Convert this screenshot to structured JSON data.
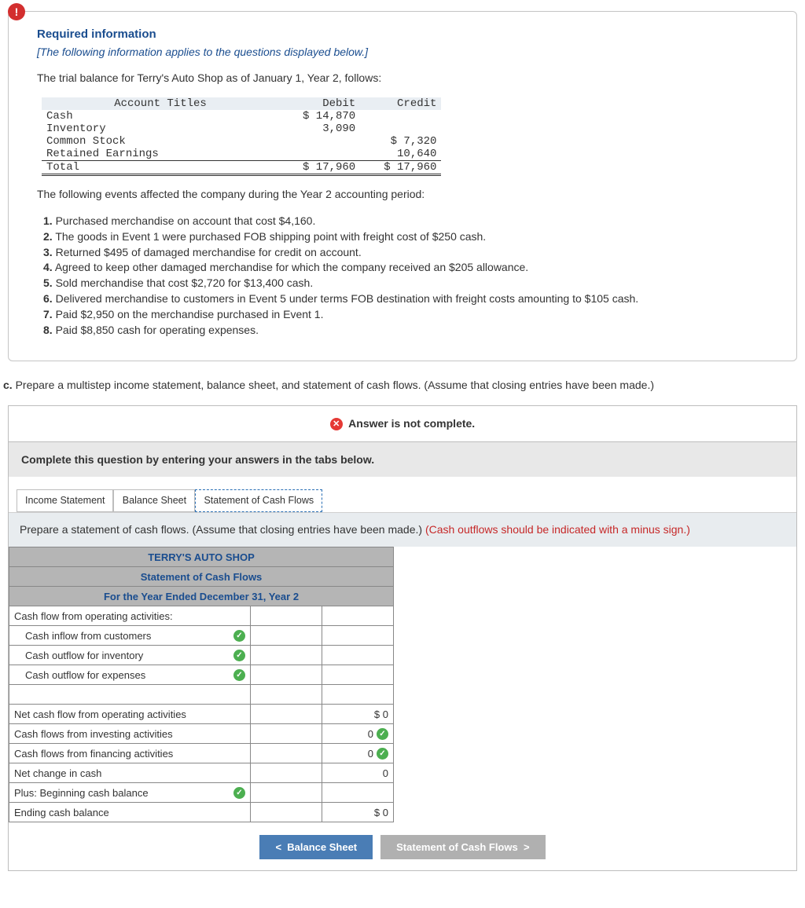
{
  "header": {
    "required_label": "Required information",
    "applies_note": "[The following information applies to the questions displayed below.]",
    "intro": "The trial balance for Terry's Auto Shop as of January 1, Year 2, follows:"
  },
  "trial_balance": {
    "headers": [
      "Account Titles",
      "Debit",
      "Credit"
    ],
    "rows": [
      {
        "title": "Cash",
        "debit": "$ 14,870",
        "credit": ""
      },
      {
        "title": "Inventory",
        "debit": "3,090",
        "credit": ""
      },
      {
        "title": "Common Stock",
        "debit": "",
        "credit": "$ 7,320"
      },
      {
        "title": "Retained Earnings",
        "debit": "",
        "credit": "10,640"
      }
    ],
    "total": {
      "title": "Total",
      "debit": "$ 17,960",
      "credit": "$ 17,960"
    }
  },
  "events_intro": "The following events affected the company during the Year 2 accounting period:",
  "events": [
    "Purchased merchandise on account that cost $4,160.",
    "The goods in Event 1 were purchased FOB shipping point with freight cost of $250 cash.",
    "Returned $495 of damaged merchandise for credit on account.",
    "Agreed to keep other damaged merchandise for which the company received an $205 allowance.",
    "Sold merchandise that cost $2,720 for $13,400 cash.",
    "Delivered merchandise to customers in Event 5 under terms FOB destination with freight costs amounting to $105 cash.",
    "Paid $2,950 on the merchandise purchased in Event 1.",
    "Paid $8,850 cash for operating expenses."
  ],
  "part_c": {
    "label": "c.",
    "text": " Prepare a multistep income statement, balance sheet, and statement of cash flows. (Assume that closing entries have been made.)"
  },
  "answer_banner": "Answer is not complete.",
  "tabs_instruction": "Complete this question by entering your answers in the tabs below.",
  "tabs": [
    "Income Statement",
    "Balance Sheet",
    "Statement of Cash Flows"
  ],
  "tab_prompt": {
    "black": "Prepare a statement of cash flows. (Assume that closing entries have been made.) ",
    "red": "(Cash outflows should be indicated with a minus sign.)"
  },
  "scf": {
    "title1": "TERRY'S AUTO SHOP",
    "title2": "Statement of Cash Flows",
    "title3": "For the Year Ended December 31, Year 2",
    "rows": [
      {
        "label": "Cash flow from operating activities:",
        "indent": false,
        "check": false,
        "c2": "",
        "c3": ""
      },
      {
        "label": "Cash inflow from customers",
        "indent": true,
        "check": true,
        "c2": "",
        "c3": ""
      },
      {
        "label": "Cash outflow for inventory",
        "indent": true,
        "check": true,
        "c2": "",
        "c3": ""
      },
      {
        "label": "Cash outflow for expenses",
        "indent": true,
        "check": true,
        "c2": "",
        "c3": ""
      },
      {
        "label": "",
        "indent": true,
        "check": false,
        "c2": "",
        "c3": ""
      },
      {
        "label": "Net cash flow from operating activities",
        "indent": false,
        "check": false,
        "c2": "",
        "c3": "$            0"
      },
      {
        "label": "Cash flows from investing activities",
        "indent": false,
        "check": false,
        "c2": "",
        "c3": "0",
        "c3check": true
      },
      {
        "label": "Cash flows from financing activities",
        "indent": false,
        "check": false,
        "c2": "",
        "c3": "0",
        "c3check": true
      },
      {
        "label": "Net change in cash",
        "indent": false,
        "check": false,
        "c2": "",
        "c3": "0"
      },
      {
        "label": "Plus: Beginning cash balance",
        "indent": false,
        "check": true,
        "c2": "",
        "c3": ""
      },
      {
        "label": "Ending cash balance",
        "indent": false,
        "check": false,
        "c2": "",
        "c3": "$            0"
      }
    ]
  },
  "nav": {
    "prev": "Balance Sheet",
    "next": "Statement of Cash Flows"
  }
}
